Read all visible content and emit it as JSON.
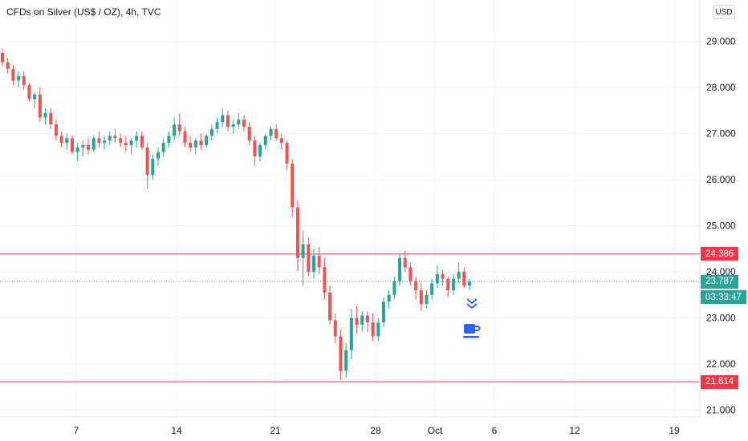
{
  "header": {
    "title": "CFDs on Silver (US$ / OZ), 4h, TVC",
    "currency": "USD"
  },
  "colors": {
    "up": "#26a69a",
    "down": "#ef5350",
    "grid": "#f0f3fa",
    "axis_text": "#131722",
    "level_line": "#f23645",
    "current_line": "#26a69a",
    "icon_blue": "#2962ff"
  },
  "icons": {
    "scroll_to_latest": "chevron-double-down-icon",
    "break": "coffee-cup-icon"
  },
  "chart_data": {
    "type": "candlestick",
    "title": "CFDs on Silver (US$ / OZ), 4h, TVC",
    "ylim": [
      20.85,
      29.9
    ],
    "yticks": [
      "29.000",
      "28.000",
      "27.000",
      "26.000",
      "25.000",
      "24.000",
      "23.000",
      "22.000",
      "21.000"
    ],
    "xticks": [
      "7",
      "14",
      "21",
      "28",
      "Oct",
      "6",
      "12",
      "19"
    ],
    "grid": true,
    "levels": [
      {
        "value": 24.386,
        "label": "24.386"
      },
      {
        "value": 21.614,
        "label": "21.614"
      }
    ],
    "last_price": {
      "value": 23.787,
      "label": "23.787",
      "countdown": "03:33:47"
    },
    "ohlc": [
      [
        28.75,
        28.85,
        28.45,
        28.55
      ],
      [
        28.55,
        28.65,
        28.3,
        28.4
      ],
      [
        28.4,
        28.5,
        28.05,
        28.15
      ],
      [
        28.15,
        28.35,
        28.0,
        28.25
      ],
      [
        28.25,
        28.35,
        27.95,
        28.05
      ],
      [
        28.05,
        28.1,
        27.7,
        27.75
      ],
      [
        27.75,
        27.9,
        27.55,
        27.85
      ],
      [
        27.85,
        28.0,
        27.25,
        27.35
      ],
      [
        27.35,
        27.55,
        27.2,
        27.45
      ],
      [
        27.45,
        27.55,
        27.1,
        27.2
      ],
      [
        27.2,
        27.3,
        26.85,
        26.95
      ],
      [
        26.95,
        27.05,
        26.7,
        26.8
      ],
      [
        26.8,
        27.0,
        26.65,
        26.9
      ],
      [
        26.9,
        26.95,
        26.55,
        26.6
      ],
      [
        26.6,
        26.8,
        26.4,
        26.7
      ],
      [
        26.7,
        26.85,
        26.5,
        26.75
      ],
      [
        26.75,
        26.9,
        26.55,
        26.65
      ],
      [
        26.65,
        26.95,
        26.6,
        26.9
      ],
      [
        26.9,
        27.05,
        26.7,
        26.8
      ],
      [
        26.8,
        26.95,
        26.65,
        26.85
      ],
      [
        26.85,
        27.05,
        26.75,
        26.95
      ],
      [
        26.95,
        27.1,
        26.8,
        26.9
      ],
      [
        26.9,
        27.0,
        26.7,
        26.8
      ],
      [
        26.8,
        26.95,
        26.6,
        26.75
      ],
      [
        26.75,
        26.9,
        26.55,
        26.85
      ],
      [
        26.85,
        27.05,
        26.7,
        26.95
      ],
      [
        26.95,
        27.05,
        26.65,
        26.7
      ],
      [
        26.7,
        26.8,
        25.8,
        26.1
      ],
      [
        26.1,
        26.55,
        26.0,
        26.45
      ],
      [
        26.45,
        26.7,
        26.3,
        26.6
      ],
      [
        26.6,
        26.9,
        26.5,
        26.8
      ],
      [
        26.8,
        27.05,
        26.7,
        26.95
      ],
      [
        26.95,
        27.35,
        26.85,
        27.2
      ],
      [
        27.2,
        27.45,
        26.95,
        27.05
      ],
      [
        27.05,
        27.15,
        26.7,
        26.8
      ],
      [
        26.8,
        26.95,
        26.6,
        26.7
      ],
      [
        26.7,
        26.9,
        26.55,
        26.85
      ],
      [
        26.85,
        27.0,
        26.65,
        26.75
      ],
      [
        26.75,
        27.0,
        26.7,
        26.95
      ],
      [
        26.95,
        27.2,
        26.85,
        27.1
      ],
      [
        27.1,
        27.35,
        27.0,
        27.25
      ],
      [
        27.25,
        27.55,
        27.15,
        27.4
      ],
      [
        27.4,
        27.5,
        27.05,
        27.15
      ],
      [
        27.15,
        27.3,
        27.0,
        27.2
      ],
      [
        27.2,
        27.45,
        27.1,
        27.3
      ],
      [
        27.3,
        27.4,
        27.05,
        27.15
      ],
      [
        27.15,
        27.25,
        26.75,
        26.85
      ],
      [
        26.85,
        26.95,
        26.3,
        26.5
      ],
      [
        26.5,
        26.8,
        26.4,
        26.75
      ],
      [
        26.75,
        27.0,
        26.65,
        26.95
      ],
      [
        26.95,
        27.15,
        26.85,
        27.1
      ],
      [
        27.1,
        27.2,
        26.85,
        26.9
      ],
      [
        26.9,
        27.0,
        26.65,
        26.8
      ],
      [
        26.8,
        26.85,
        26.2,
        26.35
      ],
      [
        26.35,
        26.45,
        25.2,
        25.4
      ],
      [
        25.4,
        25.55,
        24.0,
        24.3
      ],
      [
        24.3,
        24.9,
        23.7,
        24.6
      ],
      [
        24.6,
        24.75,
        23.9,
        24.0
      ],
      [
        24.0,
        24.5,
        23.85,
        24.35
      ],
      [
        24.35,
        24.55,
        23.95,
        24.1
      ],
      [
        24.1,
        24.3,
        23.4,
        23.55
      ],
      [
        23.55,
        23.7,
        22.85,
        22.95
      ],
      [
        22.95,
        23.1,
        22.45,
        22.6
      ],
      [
        22.6,
        22.75,
        21.65,
        21.85
      ],
      [
        21.85,
        22.45,
        21.7,
        22.3
      ],
      [
        22.3,
        23.2,
        22.1,
        23.0
      ],
      [
        23.0,
        23.25,
        22.65,
        22.85
      ],
      [
        22.85,
        23.15,
        22.7,
        23.05
      ],
      [
        23.05,
        23.15,
        22.7,
        22.9
      ],
      [
        22.9,
        23.1,
        22.5,
        22.6
      ],
      [
        22.6,
        23.0,
        22.5,
        22.9
      ],
      [
        22.9,
        23.45,
        22.8,
        23.35
      ],
      [
        23.35,
        23.6,
        23.2,
        23.5
      ],
      [
        23.5,
        23.9,
        23.4,
        23.8
      ],
      [
        23.8,
        24.4,
        23.7,
        24.3
      ],
      [
        24.3,
        24.45,
        24.0,
        24.1
      ],
      [
        24.1,
        24.2,
        23.7,
        23.8
      ],
      [
        23.8,
        23.9,
        23.4,
        23.6
      ],
      [
        23.6,
        23.75,
        23.15,
        23.3
      ],
      [
        23.3,
        23.6,
        23.2,
        23.5
      ],
      [
        23.5,
        23.85,
        23.4,
        23.75
      ],
      [
        23.75,
        24.15,
        23.65,
        23.95
      ],
      [
        23.95,
        24.05,
        23.7,
        23.85
      ],
      [
        23.85,
        23.9,
        23.45,
        23.6
      ],
      [
        23.6,
        23.95,
        23.5,
        23.85
      ],
      [
        23.85,
        24.2,
        23.75,
        24.0
      ],
      [
        24.0,
        24.1,
        23.65,
        23.7
      ],
      [
        23.7,
        23.85,
        23.6,
        23.79
      ]
    ]
  }
}
